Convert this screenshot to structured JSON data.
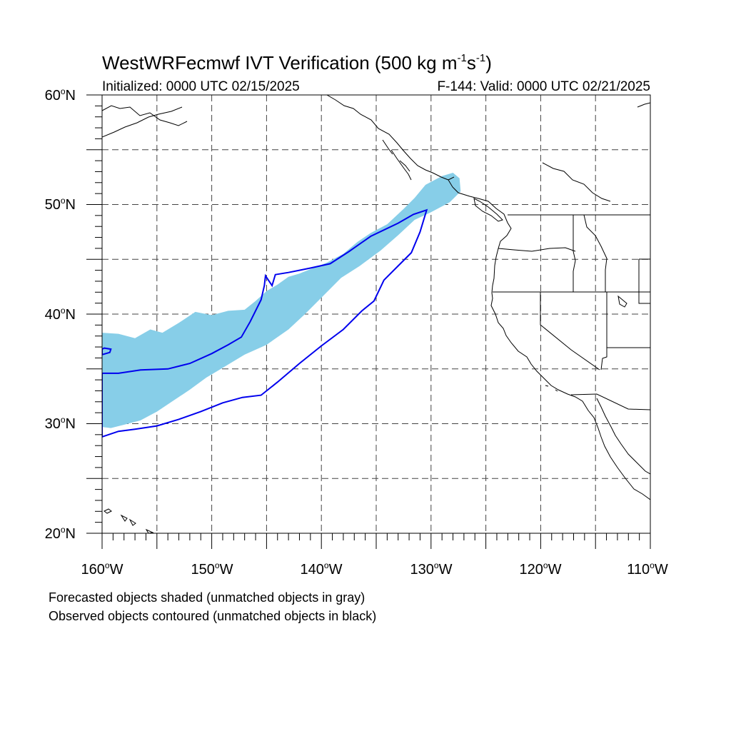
{
  "title": {
    "prefix": "WestWRFecmwf IVT Verification (500 kg m",
    "exp1": "-1",
    "mid": "s",
    "exp2": "-1",
    "suffix": ")"
  },
  "initialized": "Initialized: 0000 UTC 02/15/2025",
  "valid": "F-144: Valid: 0000 UTC 02/21/2025",
  "lat_labels": [
    {
      "num": "60",
      "suffix": "N"
    },
    {
      "num": "50",
      "suffix": "N"
    },
    {
      "num": "40",
      "suffix": "N"
    },
    {
      "num": "30",
      "suffix": "N"
    },
    {
      "num": "20",
      "suffix": "N"
    }
  ],
  "lon_labels": [
    {
      "num": "160",
      "suffix": "W"
    },
    {
      "num": "150",
      "suffix": "W"
    },
    {
      "num": "140",
      "suffix": "W"
    },
    {
      "num": "130",
      "suffix": "W"
    },
    {
      "num": "120",
      "suffix": "W"
    },
    {
      "num": "110",
      "suffix": "W"
    }
  ],
  "degree_symbol": "o",
  "notes": [
    "Forecasted objects shaded (unmatched objects in gray)",
    "Observed objects contoured (unmatched objects in black)"
  ],
  "map": {
    "lon_range": [
      -160,
      -110
    ],
    "lat_range": [
      20,
      60
    ],
    "gridline_lons": [
      -155,
      -150,
      -145,
      -140,
      -135,
      -130,
      -125,
      -120,
      -115
    ],
    "gridline_lats": [
      25,
      30,
      35,
      40,
      45,
      50,
      55
    ],
    "forecast_fill_color": "#87CEE8",
    "observed_contour_color": "#0000EE",
    "coastline_color": "#000000",
    "forecast_object": [
      [
        -160,
        38.3
      ],
      [
        -158.5,
        38.2
      ],
      [
        -157,
        37.8
      ],
      [
        -155.6,
        38.6
      ],
      [
        -154.5,
        38.3
      ],
      [
        -153,
        39.2
      ],
      [
        -151.5,
        40.2
      ],
      [
        -150,
        39.9
      ],
      [
        -148.5,
        40.3
      ],
      [
        -147,
        40.4
      ],
      [
        -146,
        41.2
      ],
      [
        -145,
        42.1
      ],
      [
        -144,
        42.7
      ],
      [
        -143,
        43.4
      ],
      [
        -142,
        43.7
      ],
      [
        -141,
        44.1
      ],
      [
        -139.5,
        44.7
      ],
      [
        -138,
        45.5
      ],
      [
        -136.7,
        46.6
      ],
      [
        -135.5,
        47.4
      ],
      [
        -134,
        48.2
      ],
      [
        -132.5,
        49.6
      ],
      [
        -131.5,
        50.6
      ],
      [
        -130.5,
        51.8
      ],
      [
        -129,
        52.6
      ],
      [
        -128,
        52.9
      ],
      [
        -127.4,
        52.4
      ],
      [
        -127.3,
        51.2
      ],
      [
        -128.3,
        50.2
      ],
      [
        -130,
        49.3
      ],
      [
        -131.5,
        48.6
      ],
      [
        -133,
        47.2
      ],
      [
        -134.6,
        45.8
      ],
      [
        -136.5,
        44.4
      ],
      [
        -138.2,
        43.3
      ],
      [
        -140,
        41.5
      ],
      [
        -141.5,
        40
      ],
      [
        -143,
        38.6
      ],
      [
        -145,
        37.2
      ],
      [
        -147,
        36.3
      ],
      [
        -149,
        35.1
      ],
      [
        -150.5,
        34.2
      ],
      [
        -152,
        33.1
      ],
      [
        -153.5,
        32.1
      ],
      [
        -155,
        31.1
      ],
      [
        -156.5,
        30.3
      ],
      [
        -158,
        29.9
      ],
      [
        -159.2,
        29.6
      ],
      [
        -160,
        29.7
      ]
    ],
    "observed_object": [
      [
        -160,
        28.8
      ],
      [
        -158.5,
        29.3
      ],
      [
        -157,
        29.5
      ],
      [
        -155,
        29.8
      ],
      [
        -153,
        30.4
      ],
      [
        -151,
        31.1
      ],
      [
        -149,
        31.9
      ],
      [
        -147.2,
        32.4
      ],
      [
        -145.5,
        32.6
      ],
      [
        -144,
        33.8
      ],
      [
        -142,
        35.5
      ],
      [
        -140,
        37.1
      ],
      [
        -138,
        38.6
      ],
      [
        -136.3,
        40.3
      ],
      [
        -135.2,
        41.2
      ],
      [
        -134.3,
        43.1
      ],
      [
        -133,
        44.4
      ],
      [
        -131.8,
        45.6
      ],
      [
        -131,
        47.5
      ],
      [
        -130.4,
        49.5
      ],
      [
        -131.6,
        49.1
      ],
      [
        -133,
        48.3
      ],
      [
        -135.5,
        47.1
      ],
      [
        -137.5,
        45.7
      ],
      [
        -139.2,
        44.6
      ],
      [
        -141,
        44.2
      ],
      [
        -143,
        43.8
      ],
      [
        -144.2,
        43.6
      ],
      [
        -144.5,
        42.6
      ],
      [
        -145.1,
        43.5
      ],
      [
        -145.2,
        42.6
      ],
      [
        -145.5,
        41.3
      ],
      [
        -146.5,
        39.3
      ],
      [
        -147.3,
        37.9
      ],
      [
        -148.5,
        37.2
      ],
      [
        -150,
        36.4
      ],
      [
        -152,
        35.5
      ],
      [
        -154,
        35
      ],
      [
        -156.5,
        34.9
      ],
      [
        -158.5,
        34.6
      ],
      [
        -160,
        34.6
      ]
    ],
    "observed_small_object": [
      [
        -160,
        36.3
      ],
      [
        -159.3,
        36.5
      ],
      [
        -159.2,
        36.8
      ],
      [
        -159.8,
        36.9
      ],
      [
        -160,
        36.8
      ]
    ]
  }
}
